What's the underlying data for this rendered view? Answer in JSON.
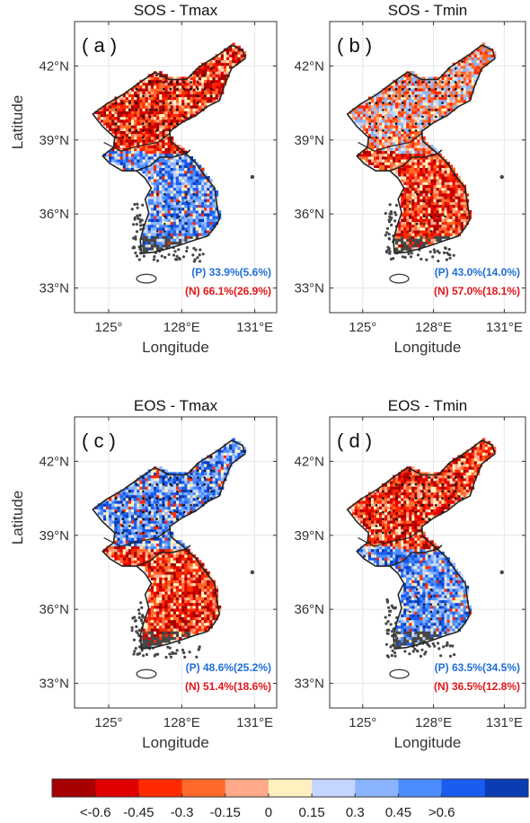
{
  "chart_data": [
    {
      "type": "heatmap",
      "title": "SOS - Tmax",
      "panel_label": "( a )",
      "xlabel": "Longitude",
      "ylabel": "Latitude",
      "xticks": [
        "125°",
        "128°E",
        "131°E"
      ],
      "yticks": [
        "42°N",
        "39°N",
        "36°N",
        "33°N"
      ],
      "xlim": [
        123.6,
        131.9
      ],
      "ylim": [
        32.0,
        43.8
      ],
      "grid": true,
      "pattern": {
        "north": "negative",
        "south": "positive",
        "stipple_north": true
      },
      "stats": {
        "positive": "(P) 33.9%(5.6%)",
        "negative": "(N) 66.1%(26.9%)"
      }
    },
    {
      "type": "heatmap",
      "title": "SOS - Tmin",
      "panel_label": "( b )",
      "xlabel": "Longitude",
      "ylabel": "",
      "xticks": [
        "125°",
        "128°E",
        "131°E"
      ],
      "yticks": [
        "42°N",
        "39°N",
        "36°N",
        "33°N"
      ],
      "xlim": [
        123.6,
        131.9
      ],
      "ylim": [
        32.0,
        43.8
      ],
      "grid": true,
      "pattern": {
        "north": "mixed",
        "south": "negative",
        "stipple_north": true
      },
      "stats": {
        "positive": "(P) 43.0%(14.0%)",
        "negative": "(N) 57.0%(18.1%)"
      }
    },
    {
      "type": "heatmap",
      "title": "EOS - Tmax",
      "panel_label": "( c )",
      "xlabel": "Longitude",
      "ylabel": "Latitude",
      "xticks": [
        "125°",
        "128°E",
        "131°E"
      ],
      "yticks": [
        "42°N",
        "39°N",
        "36°N",
        "33°N"
      ],
      "xlim": [
        123.6,
        131.9
      ],
      "ylim": [
        32.0,
        43.8
      ],
      "grid": true,
      "pattern": {
        "north": "positive",
        "south": "negative",
        "stipple_north": true
      },
      "stats": {
        "positive": "(P) 48.6%(25.2%)",
        "negative": "(N) 51.4%(18.6%)"
      }
    },
    {
      "type": "heatmap",
      "title": "EOS - Tmin",
      "panel_label": "( d )",
      "xlabel": "Longitude",
      "ylabel": "",
      "xticks": [
        "125°",
        "128°E",
        "131°E"
      ],
      "yticks": [
        "42°N",
        "39°N",
        "36°N",
        "33°N"
      ],
      "xlim": [
        123.6,
        131.9
      ],
      "ylim": [
        32.0,
        43.8
      ],
      "grid": true,
      "pattern": {
        "north": "negative",
        "south": "positive",
        "stipple_north": true
      },
      "stats": {
        "positive": "(P) 63.5%(34.5%)",
        "negative": "(N) 36.5%(12.8%)"
      }
    }
  ],
  "colorbar": {
    "colors": [
      "#a60000",
      "#e00000",
      "#ff2a00",
      "#ff6a2a",
      "#ffa98a",
      "#fff0c0",
      "#c4d6ff",
      "#8ab4ff",
      "#4a8cff",
      "#1a5cf0",
      "#0a3cb4"
    ],
    "ticks": [
      "<-0.6",
      "-0.45",
      "-0.3",
      "-0.15",
      "0",
      "0.15",
      "0.3",
      "0.45",
      ">0.6"
    ]
  },
  "colors": {
    "positive_text": "#1f6fd6",
    "negative_text": "#e0161a",
    "land_nodata": "#474747",
    "border": "#222222",
    "grid": "#e6e6e6"
  }
}
